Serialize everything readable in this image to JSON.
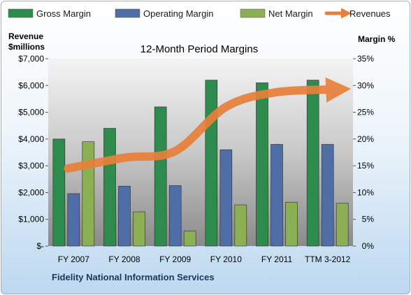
{
  "chart_data": {
    "type": "bar",
    "title": "12-Month Period Margins",
    "categories": [
      "FY 2007",
      "FY 2008",
      "FY 2009",
      "FY 2010",
      "FY 2011",
      "TTM 3-2012"
    ],
    "series": [
      {
        "name": "Gross Margin",
        "axis": "right",
        "values": [
          20.0,
          22.0,
          26.0,
          31.0,
          30.5,
          31.0
        ],
        "color": "#2e8b4e"
      },
      {
        "name": "Operating Margin",
        "axis": "right",
        "values": [
          9.8,
          11.2,
          11.3,
          18.0,
          19.0,
          19.0
        ],
        "color": "#4f6ea8"
      },
      {
        "name": "Net Margin",
        "axis": "right",
        "values": [
          19.5,
          6.4,
          2.8,
          7.7,
          8.2,
          8.0
        ],
        "color": "#8bb054"
      }
    ],
    "line_series": {
      "name": "Revenues",
      "axis": "left",
      "values": [
        2900,
        3300,
        3550,
        5200,
        5750,
        5850
      ],
      "color": "#e8803a"
    },
    "y_left": {
      "label_line1": "Revenue",
      "label_line2": "$millions",
      "ylim": [
        0,
        7000
      ],
      "ticks": [
        {
          "v": 0,
          "label": "$-"
        },
        {
          "v": 1000,
          "label": "$1,000"
        },
        {
          "v": 2000,
          "label": "$2,000"
        },
        {
          "v": 3000,
          "label": "$3,000"
        },
        {
          "v": 4000,
          "label": "$4,000"
        },
        {
          "v": 5000,
          "label": "$5,000"
        },
        {
          "v": 6000,
          "label": "$6,000"
        },
        {
          "v": 7000,
          "label": "$7,000"
        }
      ]
    },
    "y_right": {
      "label": "Margin %",
      "ylim": [
        0,
        35
      ],
      "ticks": [
        {
          "v": 0,
          "label": "0%"
        },
        {
          "v": 5,
          "label": "5%"
        },
        {
          "v": 10,
          "label": "10%"
        },
        {
          "v": 15,
          "label": "15%"
        },
        {
          "v": 20,
          "label": "20%"
        },
        {
          "v": 25,
          "label": "25%"
        },
        {
          "v": 30,
          "label": "30%"
        },
        {
          "v": 35,
          "label": "35%"
        }
      ]
    },
    "legend_position": "top",
    "grid": false,
    "footer": "Fidelity National Information Services"
  }
}
